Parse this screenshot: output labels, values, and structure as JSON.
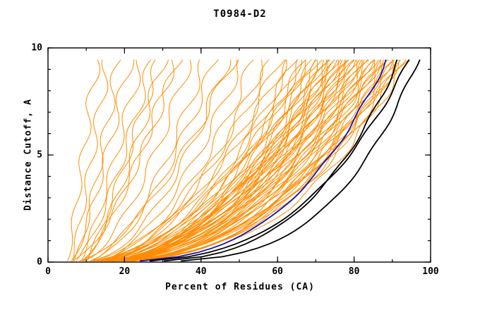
{
  "chart": {
    "title": "T0984-D2",
    "xlabel": "Percent of Residues (CA)",
    "ylabel": "Distance Cutoff, A",
    "x_tick_values": [
      0,
      20,
      40,
      60,
      80,
      100
    ],
    "x_tick_labels": [
      "0",
      "20",
      "40",
      "60",
      "80",
      "100"
    ],
    "y_tick_values": [
      0,
      5,
      10
    ],
    "y_tick_labels": [
      "0",
      "5",
      "10"
    ],
    "x_minor_step": 10,
    "y_minor_step": 1,
    "colors": {
      "predictions": "#ff8c00",
      "highlight_blue": "#1212b4",
      "highlight_black": "#000000",
      "frame": "#000000",
      "background": "#ffffff"
    }
  },
  "chart_data": {
    "type": "line",
    "title": "T0984-D2",
    "xlabel": "Percent of Residues (CA)",
    "ylabel": "Distance Cutoff, A",
    "xlim": [
      0,
      100
    ],
    "ylim": [
      0,
      10
    ],
    "legend": "none",
    "grid": false,
    "curve_model": "x(y) = x0 + (x_end - x0) * (y/10)^q, y from 0 to 9.55",
    "groups": [
      {
        "name": "prediction-curves",
        "color": "#ff8c00",
        "width": 1,
        "wiggle": 1.2,
        "curves": [
          [
            5,
            13,
            0.92
          ],
          [
            6,
            16,
            0.85
          ],
          [
            7,
            19,
            0.8
          ],
          [
            6,
            22,
            0.78
          ],
          [
            8,
            25,
            0.8
          ],
          [
            7,
            28,
            0.72
          ],
          [
            9,
            31,
            0.75
          ],
          [
            8,
            34,
            0.7
          ],
          [
            10,
            30,
            0.88
          ],
          [
            6,
            35,
            0.66
          ],
          [
            8,
            38,
            0.6
          ],
          [
            9,
            42,
            0.56
          ],
          [
            10,
            45,
            0.6
          ],
          [
            9,
            48,
            0.52
          ],
          [
            11,
            52,
            0.55
          ],
          [
            10,
            55,
            0.5
          ],
          [
            7,
            50,
            0.62
          ],
          [
            12,
            58,
            0.52
          ],
          [
            7,
            60,
            0.5
          ],
          [
            8,
            62,
            0.48
          ],
          [
            9,
            64,
            0.52
          ],
          [
            8,
            65,
            0.45
          ],
          [
            10,
            66,
            0.5
          ],
          [
            9,
            67,
            0.42
          ],
          [
            11,
            68,
            0.48
          ],
          [
            8,
            69,
            0.5
          ],
          [
            10,
            70,
            0.44
          ],
          [
            9,
            70,
            0.5
          ],
          [
            12,
            71,
            0.46
          ],
          [
            8,
            72,
            0.5
          ],
          [
            11,
            72,
            0.42
          ],
          [
            9,
            73,
            0.48
          ],
          [
            10,
            74,
            0.45
          ],
          [
            12,
            74,
            0.5
          ],
          [
            8,
            75,
            0.4
          ],
          [
            11,
            75,
            0.47
          ],
          [
            9,
            76,
            0.44
          ],
          [
            13,
            76,
            0.5
          ],
          [
            10,
            77,
            0.42
          ],
          [
            8,
            77,
            0.48
          ],
          [
            12,
            78,
            0.45
          ],
          [
            9,
            78,
            0.5
          ],
          [
            11,
            79,
            0.41
          ],
          [
            10,
            79,
            0.47
          ],
          [
            13,
            80,
            0.44
          ],
          [
            9,
            80,
            0.5
          ],
          [
            12,
            81,
            0.42
          ],
          [
            10,
            81,
            0.47
          ],
          [
            8,
            82,
            0.45
          ],
          [
            11,
            82,
            0.5
          ],
          [
            13,
            83,
            0.41
          ],
          [
            9,
            83,
            0.46
          ],
          [
            12,
            84,
            0.43
          ],
          [
            10,
            84,
            0.48
          ],
          [
            11,
            85,
            0.4
          ],
          [
            9,
            85,
            0.45
          ],
          [
            13,
            86,
            0.42
          ],
          [
            10,
            86,
            0.47
          ],
          [
            12,
            87,
            0.39
          ],
          [
            9,
            87,
            0.44
          ],
          [
            11,
            88,
            0.41
          ],
          [
            10,
            88,
            0.46
          ],
          [
            13,
            89,
            0.38
          ],
          [
            9,
            89,
            0.43
          ],
          [
            12,
            90,
            0.4
          ],
          [
            10,
            90,
            0.45
          ],
          [
            11,
            91,
            0.37
          ],
          [
            13,
            91,
            0.42
          ],
          [
            10,
            92,
            0.39
          ],
          [
            12,
            92,
            0.44
          ],
          [
            9,
            93,
            0.36
          ],
          [
            11,
            93,
            0.41
          ],
          [
            10,
            94,
            0.38
          ],
          [
            12,
            94,
            0.43
          ],
          [
            11,
            95,
            0.35
          ],
          [
            13,
            95,
            0.4
          ]
        ]
      },
      {
        "name": "highlight-curve-blue",
        "color": "#1212b4",
        "width": 1.8,
        "wiggle": 0.4,
        "curves": [
          [
            9,
            90,
            0.32
          ]
        ]
      },
      {
        "name": "highlight-curves-black",
        "color": "#000000",
        "width": 1.8,
        "wiggle": 0.4,
        "curves": [
          [
            14,
            93,
            0.3
          ],
          [
            12,
            96,
            0.33
          ],
          [
            15,
            98,
            0.27
          ]
        ]
      }
    ]
  }
}
